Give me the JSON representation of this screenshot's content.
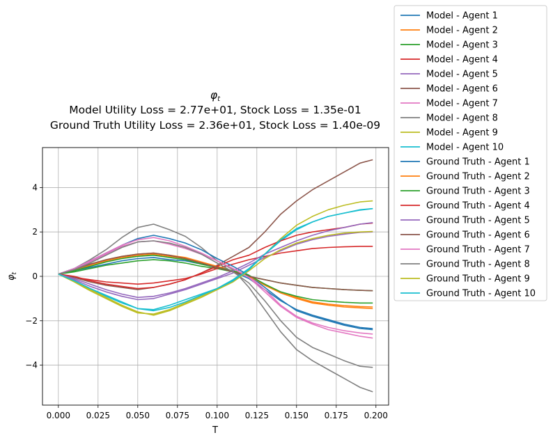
{
  "chart_data": {
    "type": "line",
    "title_symbol": "φ",
    "title_symbol_subscript": "t",
    "title_lines": [
      "Model Utility Loss = 2.77e+01, Stock Loss = 1.35e-01",
      "Ground Truth Utility Loss = 2.36e+01, Stock Loss = 1.40e-09"
    ],
    "xlabel": "T",
    "ylabel_symbol": "φ",
    "ylabel_subscript": "t",
    "xlim": [
      -0.01,
      0.208
    ],
    "ylim": [
      -5.8,
      5.8
    ],
    "xticks": [
      0.0,
      0.025,
      0.05,
      0.075,
      0.1,
      0.125,
      0.15,
      0.175,
      0.2
    ],
    "xtick_labels": [
      "0.000",
      "0.025",
      "0.050",
      "0.075",
      "0.100",
      "0.125",
      "0.150",
      "0.175",
      "0.200"
    ],
    "yticks": [
      -4,
      -2,
      0,
      2,
      4
    ],
    "ytick_labels": [
      "−4",
      "−2",
      "0",
      "2",
      "4"
    ],
    "grid": true,
    "legend_position": "outside-top-right",
    "x": [
      0.0,
      0.01,
      0.02,
      0.03,
      0.04,
      0.05,
      0.06,
      0.07,
      0.08,
      0.09,
      0.1,
      0.11,
      0.12,
      0.13,
      0.14,
      0.15,
      0.16,
      0.17,
      0.18,
      0.19,
      0.198
    ],
    "series": [
      {
        "name": "Model - Agent 1",
        "color": "#1f77b4",
        "values": [
          0.1,
          0.25,
          0.4,
          0.55,
          0.7,
          0.8,
          0.85,
          0.75,
          0.7,
          0.55,
          0.4,
          0.2,
          -0.1,
          -0.6,
          -1.1,
          -1.5,
          -1.75,
          -1.95,
          -2.15,
          -2.3,
          -2.35
        ]
      },
      {
        "name": "Model - Agent 2",
        "color": "#ff7f0e",
        "values": [
          0.1,
          0.3,
          0.5,
          0.7,
          0.85,
          0.95,
          1.0,
          0.9,
          0.8,
          0.6,
          0.4,
          0.2,
          0.0,
          -0.4,
          -0.75,
          -1.0,
          -1.2,
          -1.3,
          -1.38,
          -1.42,
          -1.45
        ]
      },
      {
        "name": "Model - Agent 3",
        "color": "#2ca02c",
        "values": [
          0.1,
          0.2,
          0.35,
          0.5,
          0.6,
          0.7,
          0.75,
          0.7,
          0.6,
          0.45,
          0.35,
          0.2,
          0.0,
          -0.15,
          -0.3,
          -0.4,
          -0.5,
          -0.55,
          -0.6,
          -0.63,
          -0.65
        ]
      },
      {
        "name": "Model - Agent 4",
        "color": "#d62728",
        "values": [
          0.1,
          -0.05,
          -0.15,
          -0.25,
          -0.3,
          -0.35,
          -0.3,
          -0.2,
          -0.1,
          0.1,
          0.35,
          0.55,
          0.75,
          0.9,
          1.05,
          1.15,
          1.25,
          1.3,
          1.33,
          1.35,
          1.35
        ]
      },
      {
        "name": "Model - Agent 5",
        "color": "#9467bd",
        "values": [
          0.1,
          -0.15,
          -0.45,
          -0.7,
          -0.9,
          -1.05,
          -1.0,
          -0.8,
          -0.6,
          -0.35,
          -0.1,
          0.15,
          0.5,
          0.85,
          1.15,
          1.45,
          1.65,
          1.8,
          1.9,
          1.98,
          2.0
        ]
      },
      {
        "name": "Model - Agent 6",
        "color": "#8c564b",
        "values": [
          0.1,
          -0.05,
          -0.25,
          -0.4,
          -0.5,
          -0.6,
          -0.5,
          -0.35,
          -0.15,
          0.15,
          0.5,
          0.9,
          1.3,
          2.0,
          2.8,
          3.4,
          3.9,
          4.3,
          4.7,
          5.1,
          5.25
        ]
      },
      {
        "name": "Model - Agent 7",
        "color": "#e377c2",
        "values": [
          0.1,
          0.3,
          0.65,
          1.0,
          1.35,
          1.55,
          1.6,
          1.45,
          1.25,
          1.0,
          0.7,
          0.35,
          0.0,
          -0.6,
          -1.3,
          -1.8,
          -2.1,
          -2.3,
          -2.45,
          -2.55,
          -2.6
        ]
      },
      {
        "name": "Model - Agent 8",
        "color": "#7f7f7f",
        "values": [
          0.1,
          0.35,
          0.75,
          1.2,
          1.75,
          2.2,
          2.35,
          2.1,
          1.8,
          1.3,
          0.7,
          0.3,
          -0.5,
          -1.5,
          -2.5,
          -3.3,
          -3.8,
          -4.2,
          -4.6,
          -5.0,
          -5.2
        ]
      },
      {
        "name": "Model - Agent 9",
        "color": "#bcbd22",
        "values": [
          0.1,
          -0.25,
          -0.65,
          -1.0,
          -1.35,
          -1.65,
          -1.7,
          -1.5,
          -1.2,
          -0.9,
          -0.6,
          -0.2,
          0.3,
          1.0,
          1.7,
          2.3,
          2.7,
          3.0,
          3.2,
          3.35,
          3.4
        ]
      },
      {
        "name": "Model - Agent 10",
        "color": "#17becf",
        "values": [
          0.1,
          -0.2,
          -0.55,
          -0.9,
          -1.2,
          -1.45,
          -1.5,
          -1.3,
          -1.05,
          -0.8,
          -0.55,
          -0.15,
          0.35,
          1.0,
          1.6,
          2.1,
          2.45,
          2.7,
          2.85,
          2.98,
          3.05
        ]
      },
      {
        "name": "Ground Truth - Agent 1",
        "color": "#1f77b4",
        "values": [
          0.1,
          0.35,
          0.7,
          1.05,
          1.4,
          1.7,
          1.85,
          1.7,
          1.5,
          1.2,
          0.8,
          0.45,
          0.05,
          -0.5,
          -1.05,
          -1.55,
          -1.8,
          -2.0,
          -2.2,
          -2.35,
          -2.4
        ]
      },
      {
        "name": "Ground Truth - Agent 2",
        "color": "#ff7f0e",
        "values": [
          0.1,
          0.3,
          0.55,
          0.75,
          0.9,
          1.0,
          1.05,
          0.95,
          0.85,
          0.65,
          0.45,
          0.25,
          0.0,
          -0.35,
          -0.7,
          -0.95,
          -1.15,
          -1.25,
          -1.32,
          -1.36,
          -1.38
        ]
      },
      {
        "name": "Ground Truth - Agent 3",
        "color": "#2ca02c",
        "values": [
          0.1,
          0.25,
          0.45,
          0.65,
          0.8,
          0.9,
          0.95,
          0.85,
          0.75,
          0.55,
          0.4,
          0.25,
          0.05,
          -0.35,
          -0.7,
          -0.9,
          -1.05,
          -1.12,
          -1.17,
          -1.2,
          -1.2
        ]
      },
      {
        "name": "Ground Truth - Agent 4",
        "color": "#d62728",
        "values": [
          0.1,
          0.0,
          -0.2,
          -0.35,
          -0.45,
          -0.55,
          -0.5,
          -0.35,
          -0.15,
          0.15,
          0.45,
          0.75,
          0.95,
          1.3,
          1.6,
          1.85,
          2.0,
          2.1,
          2.2,
          2.35,
          2.4
        ]
      },
      {
        "name": "Ground Truth - Agent 5",
        "color": "#9467bd",
        "values": [
          0.1,
          -0.1,
          -0.35,
          -0.6,
          -0.8,
          -0.95,
          -0.9,
          -0.75,
          -0.55,
          -0.3,
          -0.05,
          0.25,
          0.6,
          1.0,
          1.3,
          1.6,
          1.85,
          2.05,
          2.2,
          2.35,
          2.42
        ]
      },
      {
        "name": "Ground Truth - Agent 6",
        "color": "#8c564b",
        "values": [
          0.1,
          0.3,
          0.55,
          0.75,
          0.9,
          1.0,
          1.05,
          0.95,
          0.8,
          0.6,
          0.4,
          0.2,
          0.0,
          -0.15,
          -0.3,
          -0.4,
          -0.5,
          -0.55,
          -0.6,
          -0.63,
          -0.65
        ]
      },
      {
        "name": "Ground Truth - Agent 7",
        "color": "#e377c2",
        "values": [
          0.1,
          0.35,
          0.7,
          1.05,
          1.4,
          1.65,
          1.75,
          1.6,
          1.35,
          1.05,
          0.7,
          0.35,
          -0.05,
          -0.7,
          -1.35,
          -1.85,
          -2.15,
          -2.4,
          -2.55,
          -2.7,
          -2.78
        ]
      },
      {
        "name": "Ground Truth - Agent 8",
        "color": "#7f7f7f",
        "values": [
          0.1,
          0.3,
          0.6,
          0.95,
          1.3,
          1.55,
          1.6,
          1.5,
          1.3,
          1.0,
          0.6,
          0.2,
          -0.3,
          -1.1,
          -2.0,
          -2.75,
          -3.2,
          -3.5,
          -3.8,
          -4.05,
          -4.1
        ]
      },
      {
        "name": "Ground Truth - Agent 9",
        "color": "#bcbd22",
        "values": [
          0.1,
          -0.2,
          -0.6,
          -0.95,
          -1.3,
          -1.6,
          -1.75,
          -1.55,
          -1.25,
          -0.95,
          -0.6,
          -0.25,
          0.25,
          0.8,
          1.2,
          1.5,
          1.7,
          1.85,
          1.95,
          2.0,
          2.02
        ]
      },
      {
        "name": "Ground Truth - Agent 10",
        "color": "#17becf",
        "values": [
          0.1,
          -0.2,
          -0.55,
          -0.85,
          -1.15,
          -1.45,
          -1.55,
          -1.4,
          -1.15,
          -0.85,
          -0.55,
          -0.2,
          0.3,
          1.0,
          1.65,
          2.15,
          2.45,
          2.7,
          2.85,
          3.0,
          3.05
        ]
      }
    ]
  }
}
